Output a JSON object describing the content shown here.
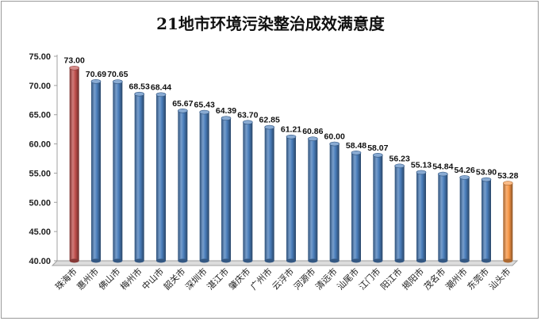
{
  "chart_data": {
    "type": "bar",
    "title": "21地市环境污染整治成效满意度",
    "xlabel": "",
    "ylabel": "",
    "ylim": [
      40,
      75
    ],
    "yticks": [
      "40.00",
      "45.00",
      "50.00",
      "55.00",
      "60.00",
      "65.00",
      "70.00",
      "75.00"
    ],
    "grid": false,
    "categories": [
      "珠海市",
      "惠州市",
      "佛山市",
      "梅州市",
      "中山市",
      "韶关市",
      "深圳市",
      "湛江市",
      "肇庆市",
      "广州市",
      "云浮市",
      "河源市",
      "清远市",
      "汕尾市",
      "江门市",
      "阳江市",
      "揭阳市",
      "茂名市",
      "潮州市",
      "东莞市",
      "汕头市"
    ],
    "values": [
      73.0,
      70.69,
      70.65,
      68.53,
      68.44,
      65.67,
      65.43,
      64.39,
      63.7,
      62.85,
      61.21,
      60.86,
      60.0,
      58.48,
      58.07,
      56.23,
      55.13,
      54.84,
      54.26,
      53.9,
      53.28
    ],
    "data_labels": [
      "73.00",
      "70.69",
      "70.65",
      "68.53",
      "68.44",
      "65.67",
      "65.43",
      "64.39",
      "63.70",
      "62.85",
      "61.21",
      "60.86",
      "60.00",
      "58.48",
      "58.07",
      "56.23",
      "55.13",
      "54.84",
      "54.26",
      "53.90",
      "53.28"
    ],
    "colors": {
      "default": "#4a7ebb",
      "highest": "#c0504d",
      "lowest": "#f79646"
    },
    "bar_colors": [
      "highest",
      "default",
      "default",
      "default",
      "default",
      "default",
      "default",
      "default",
      "default",
      "default",
      "default",
      "default",
      "default",
      "default",
      "default",
      "default",
      "default",
      "default",
      "default",
      "default",
      "lowest"
    ]
  }
}
